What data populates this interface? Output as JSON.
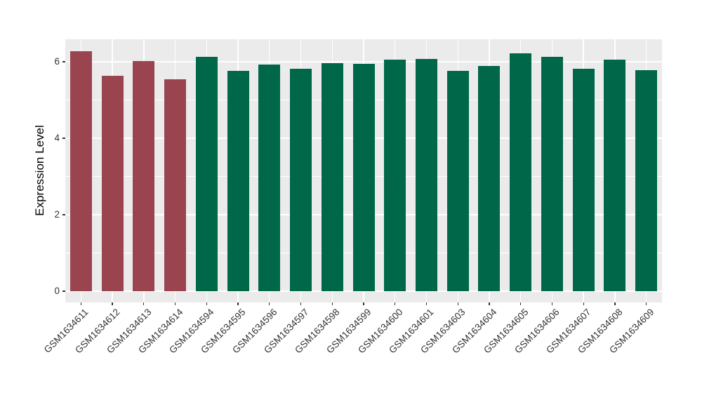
{
  "figure": {
    "background": "#FFFFFF",
    "panel_background": "#EBEBEB",
    "gridline_color": "#FFFFFF",
    "axis_text_color": "#333333",
    "axis_title_color": "#000000"
  },
  "chart_data": {
    "type": "bar",
    "title": "",
    "xlabel": "",
    "ylabel": "Expression Level",
    "ylim": [
      0,
      6.6
    ],
    "yticks": [
      0,
      2,
      4,
      6
    ],
    "ytick_labels": [
      "0",
      "2",
      "4",
      "6"
    ],
    "minor_gridlines": [
      1,
      3,
      5
    ],
    "grid": "on",
    "legend": "none",
    "categories": [
      "GSM1634611",
      "GSM1634612",
      "GSM1634613",
      "GSM1634614",
      "GSM1634594",
      "GSM1634595",
      "GSM1634596",
      "GSM1634597",
      "GSM1634598",
      "GSM1634599",
      "GSM1634600",
      "GSM1634601",
      "GSM1634603",
      "GSM1634604",
      "GSM1634605",
      "GSM1634606",
      "GSM1634607",
      "GSM1634608",
      "GSM1634609"
    ],
    "values": [
      6.27,
      5.64,
      6.01,
      5.55,
      6.12,
      5.77,
      5.93,
      5.81,
      5.97,
      5.95,
      6.05,
      6.07,
      5.77,
      5.89,
      6.22,
      6.12,
      5.81,
      6.05,
      5.78
    ],
    "groups": [
      "red",
      "red",
      "red",
      "red",
      "green",
      "green",
      "green",
      "green",
      "green",
      "green",
      "green",
      "green",
      "green",
      "green",
      "green",
      "green",
      "green",
      "green",
      "green"
    ],
    "group_colors": {
      "red": "#9A4450",
      "green": "#006849"
    },
    "x_label_rotation_deg": 45
  }
}
